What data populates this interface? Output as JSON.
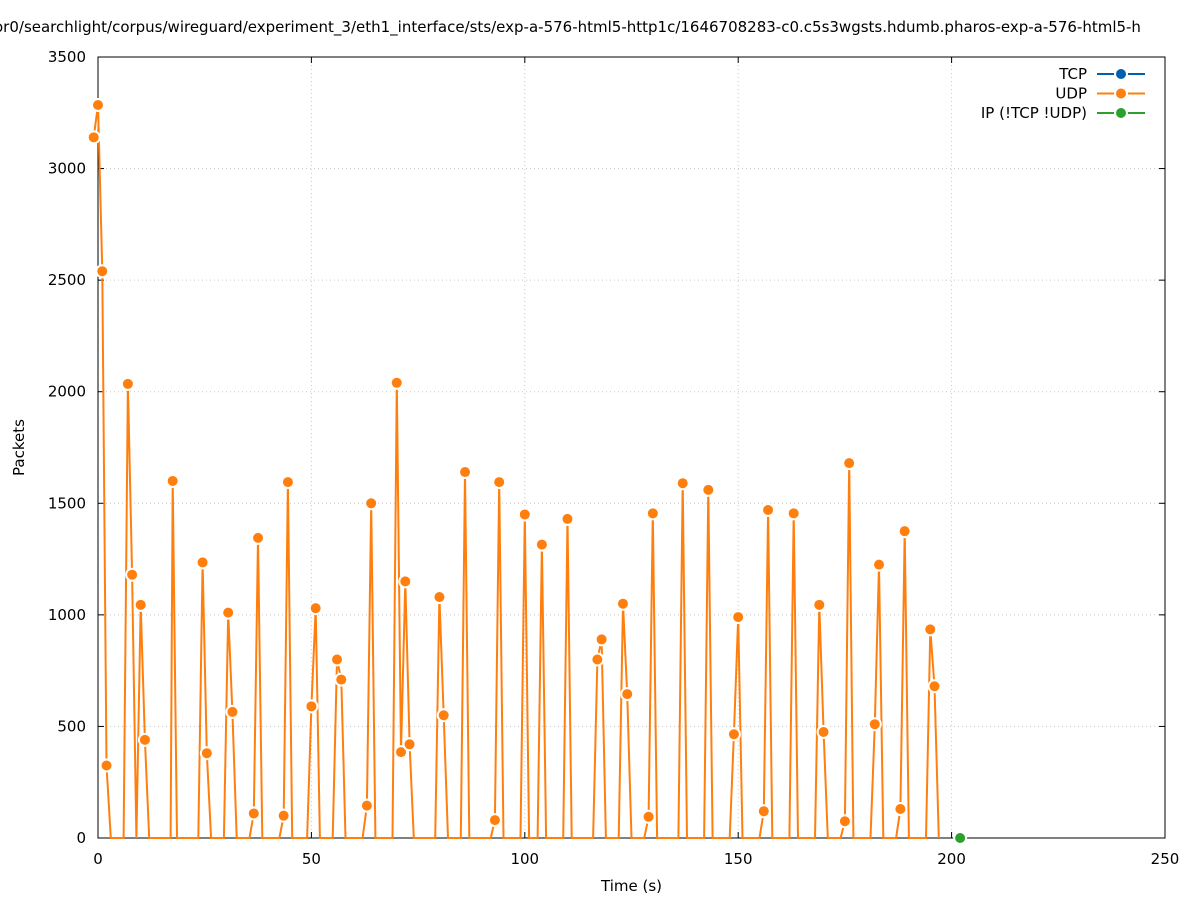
{
  "chart_data": {
    "type": "line",
    "title": "or0/searchlight/corpus/wireguard/experiment_3/eth1_interface/sts/exp-a-576-html5-http1c/1646708283-c0.c5s3wgsts.hdumb.pharos-exp-a-576-html5-h",
    "xlabel": "Time (s)",
    "ylabel": "Packets",
    "xlim": [
      0,
      250
    ],
    "ylim": [
      0,
      3500
    ],
    "x_ticks": [
      "0",
      "50",
      "100",
      "150",
      "200",
      "250"
    ],
    "y_ticks": [
      "0",
      "500",
      "1000",
      "1500",
      "2000",
      "2500",
      "3000",
      "3500"
    ],
    "grid": true,
    "legend_position": "top-right",
    "series": [
      {
        "name": "TCP",
        "color": "#0060ad",
        "points": []
      },
      {
        "name": "UDP",
        "color": "#ff7f0e",
        "points": [
          [
            -1,
            3140
          ],
          [
            0,
            3285
          ],
          [
            1,
            2540
          ],
          [
            2,
            325
          ],
          [
            3,
            0
          ],
          [
            6,
            0
          ],
          [
            7,
            2035
          ],
          [
            8,
            1180
          ],
          [
            9,
            0
          ],
          [
            10,
            1045
          ],
          [
            11,
            440
          ],
          [
            12,
            0
          ],
          [
            17,
            0
          ],
          [
            17.5,
            1600
          ],
          [
            18.5,
            0
          ],
          [
            23.5,
            0
          ],
          [
            24.5,
            1235
          ],
          [
            25.5,
            380
          ],
          [
            26.5,
            0
          ],
          [
            29.5,
            0
          ],
          [
            30.5,
            1010
          ],
          [
            31.5,
            565
          ],
          [
            32.5,
            0
          ],
          [
            35.5,
            0
          ],
          [
            36.5,
            110
          ],
          [
            37.5,
            1345
          ],
          [
            38.5,
            0
          ],
          [
            42.5,
            0
          ],
          [
            43.5,
            100
          ],
          [
            44.5,
            1595
          ],
          [
            45.5,
            0
          ],
          [
            49,
            0
          ],
          [
            50,
            590
          ],
          [
            51,
            1030
          ],
          [
            52,
            0
          ],
          [
            55,
            0
          ],
          [
            56,
            800
          ],
          [
            57,
            710
          ],
          [
            58,
            0
          ],
          [
            62,
            0
          ],
          [
            63,
            145
          ],
          [
            64,
            1500
          ],
          [
            65,
            0
          ],
          [
            69,
            0
          ],
          [
            70,
            2040
          ],
          [
            71,
            385
          ],
          [
            72,
            1150
          ],
          [
            73,
            420
          ],
          [
            74,
            0
          ],
          [
            79,
            0
          ],
          [
            80,
            1080
          ],
          [
            81,
            550
          ],
          [
            82,
            0
          ],
          [
            85,
            0
          ],
          [
            86,
            1640
          ],
          [
            87,
            0
          ],
          [
            92,
            0
          ],
          [
            93,
            80
          ],
          [
            94,
            1595
          ],
          [
            95,
            0
          ],
          [
            99,
            0
          ],
          [
            100,
            1450
          ],
          [
            101,
            0
          ],
          [
            103,
            0
          ],
          [
            104,
            1315
          ],
          [
            105,
            0
          ],
          [
            109,
            0
          ],
          [
            110,
            1430
          ],
          [
            111,
            0
          ],
          [
            116,
            0
          ],
          [
            117,
            800
          ],
          [
            118,
            890
          ],
          [
            119,
            0
          ],
          [
            122,
            0
          ],
          [
            123,
            1050
          ],
          [
            124,
            645
          ],
          [
            125,
            0
          ],
          [
            128,
            0
          ],
          [
            129,
            95
          ],
          [
            130,
            1455
          ],
          [
            131,
            0
          ],
          [
            136,
            0
          ],
          [
            137,
            1590
          ],
          [
            138,
            0
          ],
          [
            142,
            0
          ],
          [
            143,
            1560
          ],
          [
            144,
            0
          ],
          [
            148,
            0
          ],
          [
            149,
            465
          ],
          [
            150,
            990
          ],
          [
            151,
            0
          ],
          [
            155,
            0
          ],
          [
            156,
            120
          ],
          [
            157,
            1470
          ],
          [
            158,
            0
          ],
          [
            162,
            0
          ],
          [
            163,
            1455
          ],
          [
            164,
            0
          ],
          [
            168,
            0
          ],
          [
            169,
            1045
          ],
          [
            170,
            475
          ],
          [
            171,
            0
          ],
          [
            174,
            0
          ],
          [
            175,
            75
          ],
          [
            176,
            1680
          ],
          [
            177,
            0
          ],
          [
            181,
            0
          ],
          [
            182,
            510
          ],
          [
            183,
            1225
          ],
          [
            184,
            0
          ],
          [
            187,
            0
          ],
          [
            188,
            130
          ],
          [
            189,
            1375
          ],
          [
            190,
            0
          ],
          [
            194,
            0
          ],
          [
            195,
            935
          ],
          [
            196,
            680
          ],
          [
            197,
            0
          ]
        ]
      },
      {
        "name": "IP (!TCP  !UDP)",
        "color": "#2ca02c",
        "points": [
          [
            202,
            0
          ]
        ]
      }
    ]
  }
}
